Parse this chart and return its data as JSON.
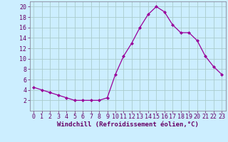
{
  "x": [
    0,
    1,
    2,
    3,
    4,
    5,
    6,
    7,
    8,
    9,
    10,
    11,
    12,
    13,
    14,
    15,
    16,
    17,
    18,
    19,
    20,
    21,
    22,
    23
  ],
  "y": [
    4.5,
    4.0,
    3.5,
    3.0,
    2.5,
    2.0,
    2.0,
    2.0,
    2.0,
    2.5,
    7.0,
    10.5,
    13.0,
    16.0,
    18.5,
    20.0,
    19.0,
    16.5,
    15.0,
    15.0,
    13.5,
    10.5,
    8.5,
    7.0
  ],
  "line_color": "#990099",
  "marker": "D",
  "marker_size": 2.0,
  "bg_color": "#cceeff",
  "grid_color": "#aacccc",
  "xlabel": "Windchill (Refroidissement éolien,°C)",
  "xlabel_fontsize": 6.5,
  "tick_fontsize": 6.0,
  "ylim": [
    0,
    21
  ],
  "yticks": [
    2,
    4,
    6,
    8,
    10,
    12,
    14,
    16,
    18,
    20
  ],
  "xticks": [
    0,
    1,
    2,
    3,
    4,
    5,
    6,
    7,
    8,
    9,
    10,
    11,
    12,
    13,
    14,
    15,
    16,
    17,
    18,
    19,
    20,
    21,
    22,
    23
  ],
  "xlim": [
    -0.5,
    23.5
  ]
}
